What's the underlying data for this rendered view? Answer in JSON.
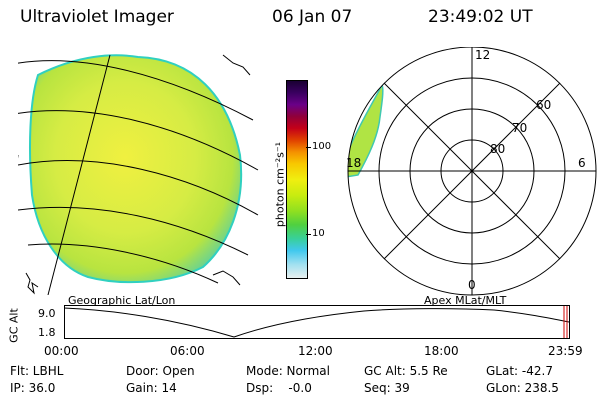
{
  "header": {
    "instrument": "Ultraviolet Imager",
    "date": "06 Jan 07",
    "time": "23:49:02 UT"
  },
  "colorbar": {
    "unit_label": "photon cm⁻²s⁻¹",
    "tick_100": "100",
    "tick_10": "10",
    "colors": [
      "#1a0033",
      "#3a0060",
      "#6a0088",
      "#90003a",
      "#c40018",
      "#e04000",
      "#f49000",
      "#f8c800",
      "#f0ee10",
      "#c8ec10",
      "#90e020",
      "#50d040",
      "#38d09a",
      "#40c8ee",
      "#a0e0f0",
      "#e8f0f0"
    ]
  },
  "left_panel": {
    "caption": "Geographic Lat/Lon",
    "image_fill": "#d4ec48"
  },
  "right_panel": {
    "caption": "Apex MLat/MLT",
    "mlt_12": "12",
    "mlt_18": "18",
    "mlt_6": "6",
    "mlt_0": "0",
    "lat_60": "60",
    "lat_70": "70",
    "lat_80": "80"
  },
  "gc_plot": {
    "ylabel": "GC Alt",
    "y_max": "9.0",
    "y_min": "1.8",
    "x_ticks": [
      "00:00",
      "06:00",
      "12:00",
      "18:00",
      "23:59"
    ],
    "current_marker_color": "#cc0000"
  },
  "info_row1": {
    "flt": "Flt: LBHL",
    "door": "Door: Open",
    "mode": "Mode: Normal",
    "gcalt": "GC Alt: 5.5 Re",
    "glat": "GLat: -42.7"
  },
  "info_row2": {
    "ip": "IP: 36.0",
    "gain": "Gain: 14",
    "dsp": "Dsp:    -0.0",
    "seq": "Seq: 39",
    "glon": "GLon: 238.5"
  }
}
